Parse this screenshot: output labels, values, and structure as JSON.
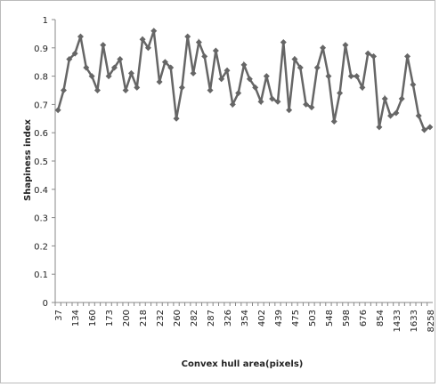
{
  "chart_data": {
    "type": "line",
    "y_label": "Shapiness index",
    "x_label": "Convex hull area(pixels)",
    "categories": [
      "37",
      null,
      null,
      "134",
      null,
      null,
      "160",
      null,
      null,
      "173",
      null,
      null,
      "200",
      null,
      null,
      "218",
      null,
      null,
      "232",
      null,
      null,
      "260",
      null,
      null,
      "282",
      null,
      null,
      "287",
      null,
      null,
      "326",
      null,
      null,
      "354",
      null,
      null,
      "402",
      null,
      null,
      "439",
      null,
      null,
      "475",
      null,
      null,
      "503",
      null,
      null,
      "548",
      null,
      null,
      "598",
      null,
      null,
      "676",
      null,
      null,
      "854",
      null,
      null,
      "1433",
      null,
      null,
      "1633",
      null,
      null,
      "8258"
    ],
    "series": [
      {
        "name": "Shapiness index",
        "color": "#666666",
        "values": [
          0.68,
          0.75,
          0.86,
          0.88,
          0.94,
          0.83,
          0.8,
          0.75,
          0.91,
          0.8,
          0.83,
          0.86,
          0.75,
          0.81,
          0.76,
          0.93,
          0.9,
          0.96,
          0.78,
          0.85,
          0.83,
          0.65,
          0.76,
          0.94,
          0.81,
          0.92,
          0.87,
          0.75,
          0.89,
          0.79,
          0.82,
          0.7,
          0.74,
          0.84,
          0.79,
          0.76,
          0.71,
          0.8,
          0.72,
          0.71,
          0.92,
          0.68,
          0.86,
          0.83,
          0.7,
          0.69,
          0.83,
          0.9,
          0.8,
          0.64,
          0.74,
          0.91,
          0.8,
          0.8,
          0.76,
          0.88,
          0.87,
          0.62,
          0.72,
          0.66,
          0.67,
          0.72,
          0.87,
          0.77,
          0.66,
          0.61,
          0.62
        ]
      }
    ],
    "ylim": [
      0,
      1
    ],
    "yticks": [
      0,
      0.1,
      0.2,
      0.3,
      0.4,
      0.5,
      0.6,
      0.7,
      0.8,
      0.9,
      1
    ]
  }
}
